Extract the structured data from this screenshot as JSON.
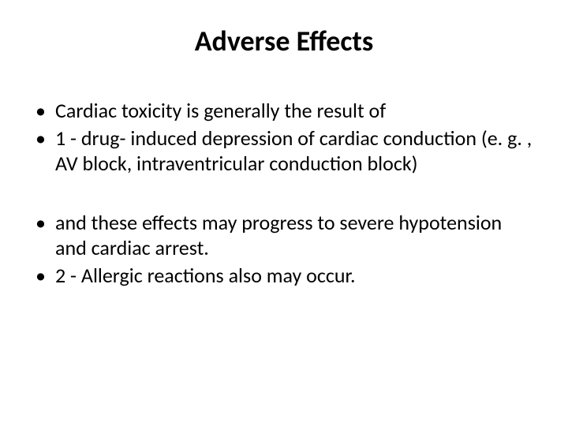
{
  "slide": {
    "title": "Adverse Effects",
    "bullets": [
      "Cardiac toxicity is generally the result of",
      "1 -  drug- induced depression of cardiac conduction (e. g. , AV block, intraventricular conduction block)",
      " and these effects may progress to severe hypotension and cardiac arrest.",
      " 2 - Allergic reactions also may occur."
    ],
    "title_fontsize": 36,
    "body_fontsize": 26,
    "background_color": "#ffffff",
    "text_color": "#000000"
  }
}
